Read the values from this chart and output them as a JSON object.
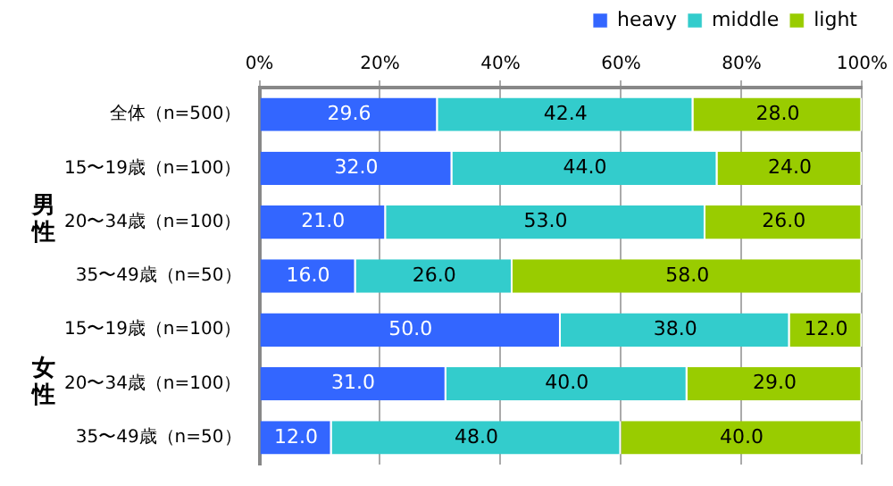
{
  "chart_data": {
    "type": "bar",
    "orientation": "horizontal",
    "stacked": true,
    "categories": [
      "全体（n=500）",
      "15〜19歳（n=100）",
      "20〜34歳（n=100）",
      "35〜49歳（n=50）",
      "15〜19歳（n=100）",
      "20〜34歳（n=100）",
      "35〜49歳（n=50）"
    ],
    "series": [
      {
        "name": "heavy",
        "color": "#3366ff",
        "values": [
          29.6,
          32.0,
          21.0,
          16.0,
          50.0,
          31.0,
          12.0
        ],
        "value_labels": [
          "29.6",
          "32.0",
          "21.0",
          "16.0",
          "50.0",
          "31.0",
          "12.0"
        ]
      },
      {
        "name": "middle",
        "color": "#33cccc",
        "values": [
          42.4,
          44.0,
          53.0,
          26.0,
          38.0,
          40.0,
          48.0
        ],
        "value_labels": [
          "42.4",
          "44.0",
          "53.0",
          "26.0",
          "38.0",
          "40.0",
          "48.0"
        ]
      },
      {
        "name": "light",
        "color": "#99cc00",
        "values": [
          28.0,
          24.0,
          26.0,
          58.0,
          12.0,
          29.0,
          40.0
        ],
        "value_labels": [
          "28.0",
          "24.0",
          "26.0",
          "58.0",
          "12.0",
          "29.0",
          "40.0"
        ]
      }
    ],
    "xlim": [
      0,
      100
    ],
    "xticks": [
      {
        "value": 0,
        "label": "0%"
      },
      {
        "value": 20,
        "label": "20%"
      },
      {
        "value": 40,
        "label": "40%"
      },
      {
        "value": 60,
        "label": "60%"
      },
      {
        "value": 80,
        "label": "80%"
      },
      {
        "value": 100,
        "label": "100%"
      }
    ],
    "grid": "x",
    "legend": "top right",
    "annotations": [
      "男性",
      "女性"
    ]
  }
}
